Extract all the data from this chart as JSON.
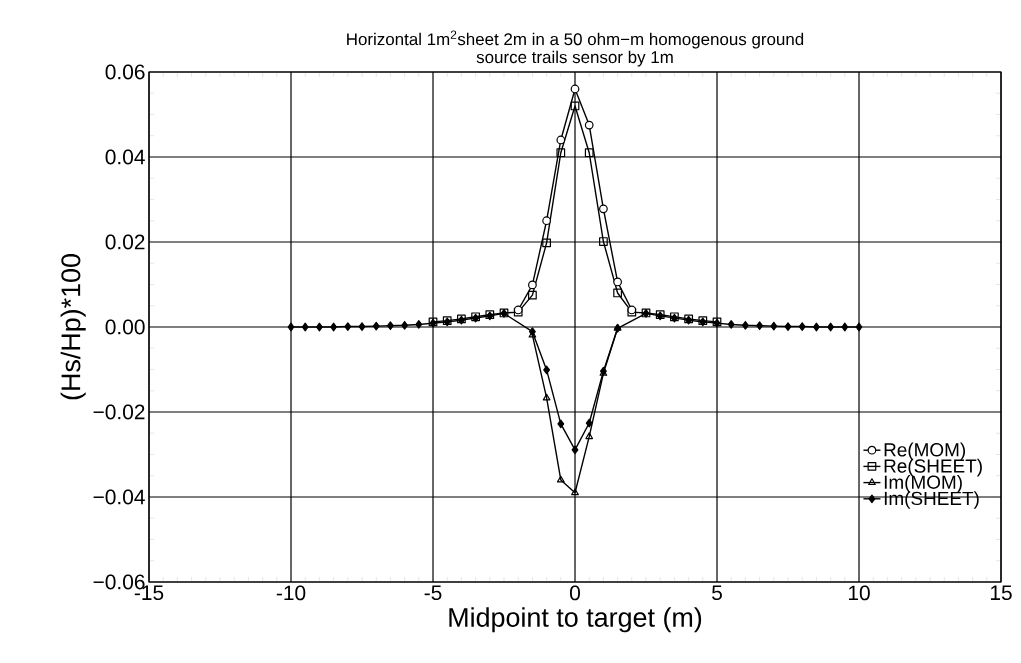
{
  "chart_data": {
    "type": "line",
    "title": "Horizontal 1m$^{2}$sheet 2m in a 50 ohm−m homogenous ground",
    "subtitle": "source trails sensor by 1m",
    "xlabel": "Midpoint to target (m)",
    "ylabel": "(Hs/Hp)*100",
    "x": [
      -10,
      -9.5,
      -9,
      -8.5,
      -8,
      -7.5,
      -7,
      -6.5,
      -6,
      -5.5,
      -5,
      -4.5,
      -4,
      -3.5,
      -3,
      -2.5,
      -2,
      -1.5,
      -1,
      -0.5,
      0,
      0.5,
      1,
      1.5,
      2,
      2.5,
      3,
      3.5,
      4,
      4.5,
      5,
      5.5,
      6,
      6.5,
      7,
      7.5,
      8,
      8.5,
      9,
      9.5,
      10
    ],
    "series": [
      {
        "name": "Re(MOM)",
        "color": "#000000",
        "marker": "circle",
        "values": [
          null,
          null,
          null,
          null,
          null,
          null,
          null,
          null,
          null,
          null,
          null,
          null,
          null,
          null,
          null,
          null,
          0.004,
          0.0099,
          0.025,
          0.044,
          0.056,
          0.0475,
          0.0278,
          0.0106,
          0.004,
          null,
          null,
          null,
          null,
          null,
          null,
          null,
          null,
          null,
          null,
          null,
          null,
          null,
          null,
          null,
          null
        ]
      },
      {
        "name": "Re(SHEET)",
        "color": "#000000",
        "marker": "square",
        "values": [
          null,
          null,
          null,
          null,
          null,
          null,
          null,
          null,
          null,
          null,
          0.0012,
          0.0015,
          0.0019,
          0.0024,
          0.0029,
          0.0033,
          0.0035,
          0.0075,
          0.0198,
          0.041,
          0.052,
          0.041,
          0.0201,
          0.008,
          0.0035,
          0.0033,
          0.0029,
          0.0024,
          0.0019,
          0.0015,
          0.0012,
          null,
          null,
          null,
          null,
          null,
          null,
          null,
          null,
          null,
          null
        ]
      },
      {
        "name": "Im(MOM)",
        "color": "#000000",
        "marker": "triangle",
        "values": [
          null,
          null,
          null,
          null,
          null,
          null,
          null,
          null,
          null,
          null,
          null,
          null,
          null,
          null,
          null,
          null,
          null,
          -0.0019,
          -0.0167,
          -0.036,
          -0.039,
          -0.0258,
          -0.0109,
          -0.0003,
          null,
          null,
          null,
          null,
          null,
          null,
          null,
          null,
          null,
          null,
          null,
          null,
          null,
          null,
          null,
          null,
          null
        ]
      },
      {
        "name": "Im(SHEET)",
        "color": "#000000",
        "marker": "diamond",
        "values": [
          0,
          0,
          0,
          0,
          0.0001,
          0.0001,
          0.0002,
          0.0003,
          0.0004,
          0.0006,
          0.0009,
          0.0012,
          0.0016,
          0.0021,
          0.0026,
          0.0032,
          null,
          -0.0011,
          -0.0101,
          -0.0228,
          -0.0289,
          -0.0226,
          -0.0104,
          -0.0003,
          null,
          0.0032,
          0.0026,
          0.0021,
          0.0016,
          0.0012,
          0.0009,
          0.0006,
          0.0004,
          0.0003,
          0.0002,
          0.0001,
          0.0001,
          0,
          0,
          0,
          0
        ]
      }
    ],
    "xlim": [
      -15,
      15
    ],
    "xticks": [
      -15,
      -10,
      -5,
      0,
      5,
      10,
      15
    ],
    "ylim": [
      -0.06,
      0.06
    ],
    "yticks": [
      {
        "value": -0.06,
        "label": "−0.06"
      },
      {
        "value": -0.04,
        "label": "−0.04"
      },
      {
        "value": -0.02,
        "label": "−0.02"
      },
      {
        "value": 0,
        "label": "0.00"
      },
      {
        "value": 0.02,
        "label": "0.02"
      },
      {
        "value": 0.04,
        "label": "0.04"
      },
      {
        "value": 0.06,
        "label": "0.06"
      }
    ],
    "grid": true,
    "legend": "bottom right",
    "line_style": "solid"
  }
}
